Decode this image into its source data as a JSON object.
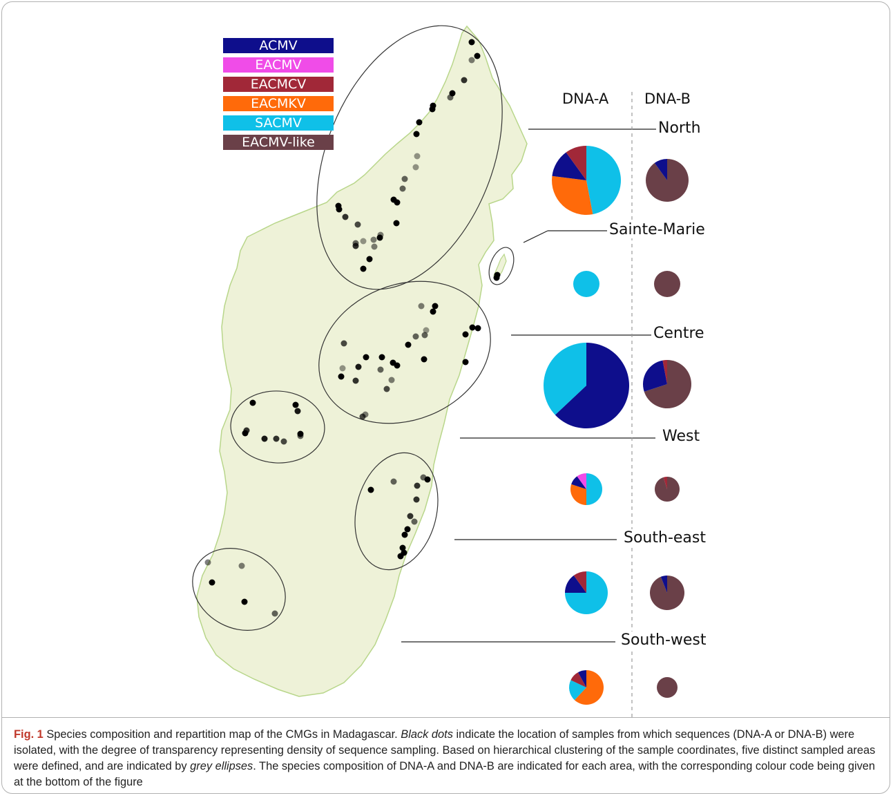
{
  "legend": [
    {
      "label": "ACMV",
      "color": "#0e0e8c"
    },
    {
      "label": "EACMV",
      "color": "#f04ce8"
    },
    {
      "label": "EACMCV",
      "color": "#a12838"
    },
    {
      "label": "EACMKV",
      "color": "#ff6a0a"
    },
    {
      "label": "SACMV",
      "color": "#0fc0e8"
    },
    {
      "label": "EACMV-like",
      "color": "#6a4048"
    }
  ],
  "columns": {
    "dna_a": "DNA-A",
    "dna_b": "DNA-B"
  },
  "regions": [
    {
      "name": "North",
      "dna_a": [
        {
          "species": "SACMV",
          "share": 0.47
        },
        {
          "species": "EACMKV",
          "share": 0.3
        },
        {
          "species": "ACMV",
          "share": 0.13
        },
        {
          "species": "EACMCV",
          "share": 0.1
        }
      ],
      "dna_b": [
        {
          "species": "EACMV-like",
          "share": 0.9
        },
        {
          "species": "ACMV",
          "share": 0.1
        }
      ]
    },
    {
      "name": "Sainte-Marie",
      "dna_a": [
        {
          "species": "SACMV",
          "share": 1.0
        }
      ],
      "dna_b": [
        {
          "species": "EACMV-like",
          "share": 1.0
        }
      ]
    },
    {
      "name": "Centre",
      "dna_a": [
        {
          "species": "ACMV",
          "share": 0.63
        },
        {
          "species": "SACMV",
          "share": 0.37
        }
      ],
      "dna_b": [
        {
          "species": "EACMV-like",
          "share": 0.7
        },
        {
          "species": "ACMV",
          "share": 0.27
        },
        {
          "species": "EACMCV",
          "share": 0.03
        }
      ]
    },
    {
      "name": "West",
      "dna_a": [
        {
          "species": "SACMV",
          "share": 0.5
        },
        {
          "species": "EACMKV",
          "share": 0.3
        },
        {
          "species": "ACMV",
          "share": 0.1
        },
        {
          "species": "EACMV",
          "share": 0.1
        }
      ],
      "dna_b": [
        {
          "species": "EACMV-like",
          "share": 0.95
        },
        {
          "species": "EACMCV",
          "share": 0.05
        }
      ]
    },
    {
      "name": "South-east",
      "dna_a": [
        {
          "species": "SACMV",
          "share": 0.75
        },
        {
          "species": "ACMV",
          "share": 0.15
        },
        {
          "species": "EACMCV",
          "share": 0.1
        }
      ],
      "dna_b": [
        {
          "species": "EACMV-like",
          "share": 0.94
        },
        {
          "species": "ACMV",
          "share": 0.06
        }
      ]
    },
    {
      "name": "South-west",
      "dna_a": [
        {
          "species": "EACMKV",
          "share": 0.62
        },
        {
          "species": "SACMV",
          "share": 0.2
        },
        {
          "species": "EACMCV",
          "share": 0.1
        },
        {
          "species": "ACMV",
          "share": 0.08
        }
      ],
      "dna_b": [
        {
          "species": "EACMV-like",
          "share": 1.0
        }
      ]
    }
  ],
  "caption": {
    "label": "Fig. 1",
    "text_1": " Species composition and repartition map of the CMGs in Madagascar. ",
    "italic_1": "Black dots",
    "text_2": " indicate the location of samples from which sequences (DNA-A or DNA-B) were isolated, with the degree of transparency representing density of sequence sampling. Based on hierarchical clustering of the sample coordinates, five distinct sampled areas were defined, and are indicated by ",
    "italic_2": "grey ellipses",
    "text_3": ". The species composition of DNA-A and DNA-B are indicated for each area, with the corresponding colour code being given at the bottom of the figure"
  }
}
